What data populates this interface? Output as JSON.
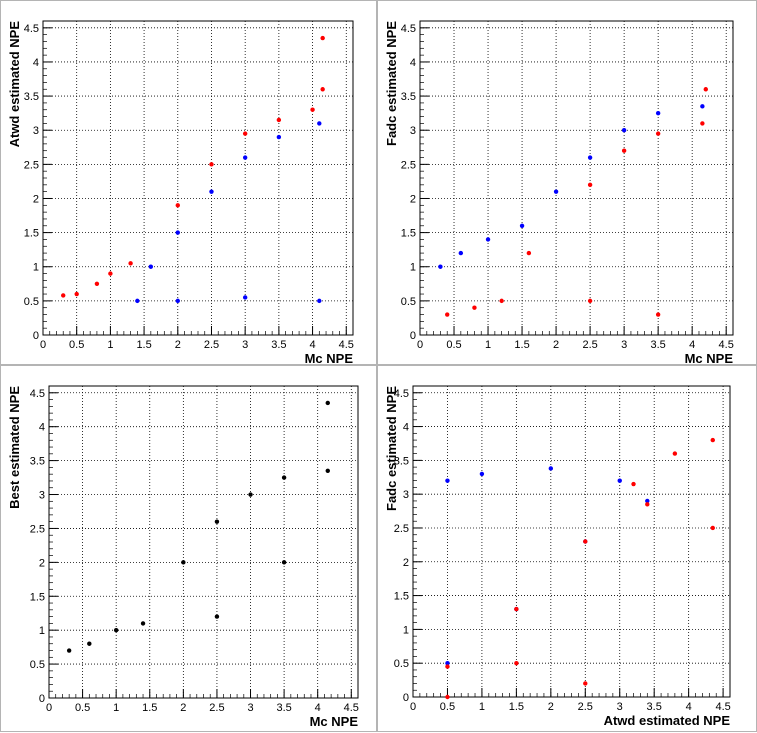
{
  "chart_data": [
    {
      "type": "scatter",
      "xlabel": "Mc NPE",
      "ylabel": "Atwd estimated NPE",
      "xlim": [
        0,
        4.6
      ],
      "ylim": [
        0,
        4.6
      ],
      "xticks": [
        "0",
        "0.5",
        "1",
        "1.5",
        "2",
        "2.5",
        "3",
        "3.5",
        "4",
        "4.5"
      ],
      "yticks": [
        "0",
        "0.5",
        "1",
        "1.5",
        "2",
        "2.5",
        "3",
        "3.5",
        "4",
        "4.5"
      ],
      "grid": true,
      "series": [
        {
          "color": "#ff0000",
          "values": [
            [
              0.3,
              0.58
            ],
            [
              0.5,
              0.6
            ],
            [
              0.8,
              0.75
            ],
            [
              1.0,
              0.9
            ],
            [
              1.3,
              1.05
            ],
            [
              2.0,
              1.9
            ],
            [
              2.5,
              2.5
            ],
            [
              3.0,
              2.95
            ],
            [
              3.5,
              3.15
            ],
            [
              4.0,
              3.3
            ],
            [
              4.15,
              3.6
            ],
            [
              4.15,
              4.35
            ]
          ]
        },
        {
          "color": "#0000ff",
          "values": [
            [
              1.4,
              0.5
            ],
            [
              1.6,
              1.0
            ],
            [
              2.0,
              1.5
            ],
            [
              2.5,
              2.1
            ],
            [
              3.0,
              2.6
            ],
            [
              3.5,
              2.9
            ],
            [
              4.1,
              3.1
            ],
            [
              4.1,
              0.5
            ],
            [
              3.0,
              0.55
            ],
            [
              2.0,
              0.5
            ]
          ]
        }
      ]
    },
    {
      "type": "scatter",
      "xlabel": "Mc NPE",
      "ylabel": "Fadc estimated NPE",
      "xlim": [
        0,
        4.6
      ],
      "ylim": [
        0,
        4.6
      ],
      "xticks": [
        "0",
        "0.5",
        "1",
        "1.5",
        "2",
        "2.5",
        "3",
        "3.5",
        "4",
        "4.5"
      ],
      "yticks": [
        "0",
        "0.5",
        "1",
        "1.5",
        "2",
        "2.5",
        "3",
        "3.5",
        "4",
        "4.5"
      ],
      "grid": true,
      "series": [
        {
          "color": "#0000ff",
          "values": [
            [
              0.3,
              1.0
            ],
            [
              0.6,
              1.2
            ],
            [
              1.0,
              1.4
            ],
            [
              1.5,
              1.6
            ],
            [
              2.0,
              2.1
            ],
            [
              2.5,
              2.6
            ],
            [
              3.0,
              3.0
            ],
            [
              3.5,
              3.25
            ],
            [
              4.15,
              3.35
            ]
          ]
        },
        {
          "color": "#ff0000",
          "values": [
            [
              0.4,
              0.3
            ],
            [
              0.8,
              0.4
            ],
            [
              1.2,
              0.5
            ],
            [
              1.6,
              1.2
            ],
            [
              2.5,
              2.2
            ],
            [
              3.0,
              2.7
            ],
            [
              3.5,
              2.95
            ],
            [
              4.15,
              3.1
            ],
            [
              4.2,
              3.6
            ],
            [
              2.5,
              0.5
            ],
            [
              3.5,
              0.3
            ]
          ]
        }
      ]
    },
    {
      "type": "scatter",
      "xlabel": "Mc NPE",
      "ylabel": "Best estimated NPE",
      "xlim": [
        0,
        4.6
      ],
      "ylim": [
        0,
        4.6
      ],
      "xticks": [
        "0",
        "0.5",
        "1",
        "1.5",
        "2",
        "2.5",
        "3",
        "3.5",
        "4",
        "4.5"
      ],
      "yticks": [
        "0",
        "0.5",
        "1",
        "1.5",
        "2",
        "2.5",
        "3",
        "3.5",
        "4",
        "4.5"
      ],
      "grid": true,
      "series": [
        {
          "color": "#000000",
          "values": [
            [
              0.3,
              0.7
            ],
            [
              0.6,
              0.8
            ],
            [
              1.0,
              1.0
            ],
            [
              1.4,
              1.1
            ],
            [
              2.0,
              2.0
            ],
            [
              2.5,
              2.6
            ],
            [
              3.0,
              3.0
            ],
            [
              3.5,
              3.25
            ],
            [
              4.15,
              3.35
            ],
            [
              4.15,
              4.35
            ],
            [
              3.5,
              2.0
            ],
            [
              2.5,
              1.2
            ]
          ]
        }
      ]
    },
    {
      "type": "scatter",
      "xlabel": "Atwd estimated NPE",
      "ylabel": "Fadc estimated NPE",
      "xlim": [
        0,
        4.6
      ],
      "ylim": [
        0,
        4.6
      ],
      "xticks": [
        "0",
        "0.5",
        "1",
        "1.5",
        "2",
        "2.5",
        "3",
        "3.5",
        "4",
        "4.5"
      ],
      "yticks": [
        "0",
        "0.5",
        "1",
        "1.5",
        "2",
        "2.5",
        "3",
        "3.5",
        "4",
        "4.5"
      ],
      "grid": true,
      "series": [
        {
          "color": "#0000ff",
          "values": [
            [
              0.5,
              0.5
            ],
            [
              0.5,
              3.2
            ],
            [
              1.0,
              3.3
            ],
            [
              2.0,
              3.38
            ],
            [
              3.0,
              3.2
            ],
            [
              3.4,
              2.9
            ],
            [
              2.5,
              2.3
            ],
            [
              1.5,
              1.3
            ]
          ]
        },
        {
          "color": "#ff0000",
          "values": [
            [
              0.5,
              0.0
            ],
            [
              0.5,
              0.45
            ],
            [
              1.5,
              1.3
            ],
            [
              2.5,
              2.3
            ],
            [
              3.2,
              3.15
            ],
            [
              3.4,
              2.85
            ],
            [
              3.8,
              3.6
            ],
            [
              4.35,
              3.8
            ],
            [
              4.35,
              2.5
            ],
            [
              1.5,
              0.5
            ],
            [
              2.5,
              0.2
            ]
          ]
        }
      ]
    }
  ]
}
